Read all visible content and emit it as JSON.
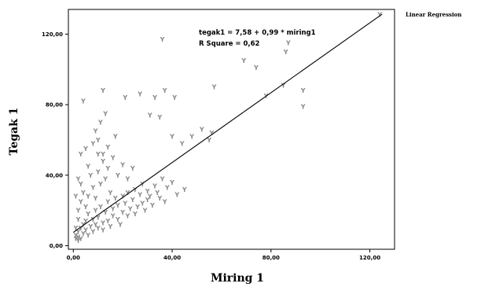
{
  "chart_data": {
    "type": "scatter",
    "xlabel": "Miring 1",
    "ylabel": "Tegak 1",
    "xlim": [
      -2,
      130
    ],
    "ylim": [
      -2,
      134
    ],
    "xticks": [
      "0,00",
      "40,00",
      "80,00",
      "120,00"
    ],
    "xtick_values": [
      0,
      40,
      80,
      120
    ],
    "yticks": [
      "0,00",
      "40,00",
      "80,00",
      "120,00"
    ],
    "ytick_values": [
      0,
      40,
      80,
      120
    ],
    "grid": false,
    "marker": "Y",
    "point_color": "#8a8a8a",
    "legend": {
      "label": "Linear Regression",
      "position": "top-right"
    },
    "annotation": [
      "tegak1 = 7,58 + 0,99 * miring1",
      "R Square = 0,62"
    ],
    "regression": {
      "intercept": 7.58,
      "slope": 0.99,
      "x_range": [
        0,
        125
      ]
    },
    "points": [
      [
        1,
        4
      ],
      [
        1,
        6
      ],
      [
        2,
        8
      ],
      [
        2,
        5
      ],
      [
        3,
        10
      ],
      [
        3,
        4
      ],
      [
        2,
        3
      ],
      [
        4,
        12
      ],
      [
        4,
        7
      ],
      [
        5,
        14
      ],
      [
        5,
        9
      ],
      [
        6,
        6
      ],
      [
        6,
        18
      ],
      [
        7,
        11
      ],
      [
        8,
        15
      ],
      [
        8,
        8
      ],
      [
        9,
        20
      ],
      [
        9,
        12
      ],
      [
        10,
        10
      ],
      [
        10,
        16
      ],
      [
        11,
        22
      ],
      [
        12,
        13
      ],
      [
        12,
        9
      ],
      [
        13,
        19
      ],
      [
        14,
        25
      ],
      [
        14,
        14
      ],
      [
        15,
        11
      ],
      [
        16,
        21
      ],
      [
        16,
        17
      ],
      [
        17,
        27
      ],
      [
        18,
        15
      ],
      [
        18,
        23
      ],
      [
        19,
        12
      ],
      [
        20,
        28
      ],
      [
        20,
        19
      ],
      [
        21,
        24
      ],
      [
        22,
        17
      ],
      [
        22,
        30
      ],
      [
        23,
        21
      ],
      [
        24,
        26
      ],
      [
        25,
        18
      ],
      [
        25,
        32
      ],
      [
        26,
        22
      ],
      [
        27,
        29
      ],
      [
        28,
        24
      ],
      [
        28,
        35
      ],
      [
        29,
        20
      ],
      [
        30,
        31
      ],
      [
        30,
        26
      ],
      [
        31,
        28
      ],
      [
        32,
        23
      ],
      [
        33,
        34
      ],
      [
        34,
        30
      ],
      [
        35,
        27
      ],
      [
        36,
        38
      ],
      [
        37,
        25
      ],
      [
        38,
        33
      ],
      [
        40,
        36
      ],
      [
        42,
        29
      ],
      [
        45,
        32
      ],
      [
        1,
        10
      ],
      [
        2,
        15
      ],
      [
        2,
        20
      ],
      [
        3,
        25
      ],
      [
        1,
        28
      ],
      [
        3,
        35
      ],
      [
        4,
        30
      ],
      [
        2,
        38
      ],
      [
        5,
        22
      ],
      [
        6,
        28
      ],
      [
        7,
        40
      ],
      [
        8,
        33
      ],
      [
        6,
        45
      ],
      [
        9,
        27
      ],
      [
        10,
        42
      ],
      [
        11,
        35
      ],
      [
        12,
        48
      ],
      [
        13,
        38
      ],
      [
        10,
        52
      ],
      [
        14,
        44
      ],
      [
        15,
        30
      ],
      [
        16,
        50
      ],
      [
        18,
        40
      ],
      [
        20,
        46
      ],
      [
        22,
        38
      ],
      [
        24,
        44
      ],
      [
        3,
        52
      ],
      [
        5,
        55
      ],
      [
        8,
        58
      ],
      [
        10,
        60
      ],
      [
        12,
        52
      ],
      [
        14,
        56
      ],
      [
        17,
        62
      ],
      [
        9,
        65
      ],
      [
        11,
        70
      ],
      [
        13,
        75
      ],
      [
        4,
        82
      ],
      [
        12,
        88
      ],
      [
        21,
        84
      ],
      [
        27,
        86
      ],
      [
        33,
        84
      ],
      [
        37,
        88
      ],
      [
        41,
        84
      ],
      [
        31,
        74
      ],
      [
        35,
        73
      ],
      [
        40,
        62
      ],
      [
        44,
        58
      ],
      [
        48,
        62
      ],
      [
        52,
        66
      ],
      [
        55,
        60
      ],
      [
        56,
        64
      ],
      [
        36,
        117
      ],
      [
        57,
        90
      ],
      [
        69,
        105
      ],
      [
        74,
        101
      ],
      [
        78,
        85
      ],
      [
        85,
        91
      ],
      [
        86,
        110
      ],
      [
        87,
        115
      ],
      [
        93,
        88
      ],
      [
        93,
        79
      ],
      [
        124,
        131
      ]
    ]
  }
}
